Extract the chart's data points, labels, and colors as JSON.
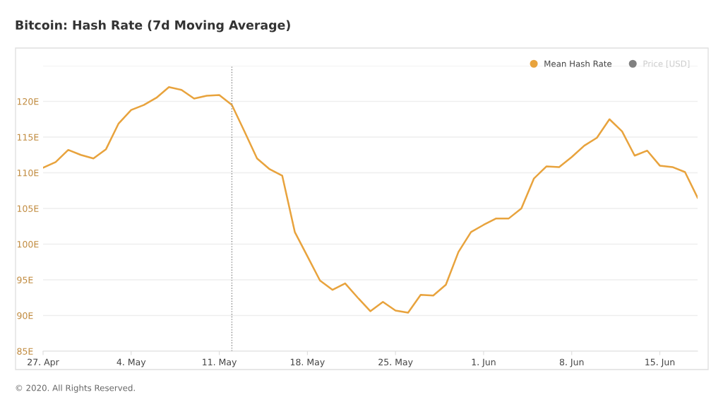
{
  "chart_data": {
    "type": "line",
    "title": "Bitcoin: Hash Rate (7d Moving Average)",
    "x": [
      "2020-04-27",
      "2020-04-28",
      "2020-04-29",
      "2020-04-30",
      "2020-05-01",
      "2020-05-02",
      "2020-05-03",
      "2020-05-04",
      "2020-05-05",
      "2020-05-06",
      "2020-05-07",
      "2020-05-08",
      "2020-05-09",
      "2020-05-10",
      "2020-05-11",
      "2020-05-12",
      "2020-05-13",
      "2020-05-14",
      "2020-05-15",
      "2020-05-16",
      "2020-05-17",
      "2020-05-18",
      "2020-05-19",
      "2020-05-20",
      "2020-05-21",
      "2020-05-22",
      "2020-05-23",
      "2020-05-24",
      "2020-05-25",
      "2020-05-26",
      "2020-05-27",
      "2020-05-28",
      "2020-05-29",
      "2020-05-30",
      "2020-05-31",
      "2020-06-01",
      "2020-06-02",
      "2020-06-03",
      "2020-06-04",
      "2020-06-05",
      "2020-06-06",
      "2020-06-07",
      "2020-06-08",
      "2020-06-09",
      "2020-06-10",
      "2020-06-11",
      "2020-06-12",
      "2020-06-13",
      "2020-06-14",
      "2020-06-15",
      "2020-06-16",
      "2020-06-17",
      "2020-06-18"
    ],
    "series": [
      {
        "name": "Mean Hash Rate",
        "color": "#e8a33d",
        "values": [
          110.7,
          111.5,
          113.2,
          112.5,
          112.0,
          113.3,
          116.9,
          118.8,
          119.5,
          120.5,
          122.0,
          121.6,
          120.4,
          120.8,
          120.9,
          119.5,
          115.8,
          112.0,
          110.5,
          109.6,
          101.7,
          98.3,
          94.9,
          93.6,
          94.5,
          92.5,
          90.6,
          91.9,
          90.7,
          90.4,
          92.9,
          92.8,
          94.3,
          98.9,
          101.7,
          102.7,
          103.6,
          103.6,
          105.0,
          109.2,
          110.9,
          110.8,
          112.2,
          113.8,
          114.9,
          117.5,
          115.8,
          112.4,
          113.1,
          111.0,
          110.8,
          110.1,
          106.5
        ]
      },
      {
        "name": "Price [USD]",
        "color": "#808080",
        "values": [
          null,
          null,
          null,
          null,
          null,
          null,
          null,
          null,
          null,
          null,
          null,
          null,
          null,
          null,
          null,
          null,
          null,
          null,
          null,
          null,
          null,
          null,
          null,
          null,
          null,
          null,
          null,
          null,
          null,
          null,
          null,
          null,
          null,
          null,
          null,
          null,
          null,
          null,
          null,
          null,
          null,
          null,
          null,
          null,
          null,
          null,
          null,
          null,
          null,
          null,
          null,
          null,
          null
        ]
      }
    ],
    "xlim": [
      "2020-04-27",
      "2020-06-18"
    ],
    "xticks": [
      {
        "value": "2020-04-27",
        "label": "27. Apr"
      },
      {
        "value": "2020-05-04",
        "label": "4. May"
      },
      {
        "value": "2020-05-11",
        "label": "11. May"
      },
      {
        "value": "2020-05-18",
        "label": "18. May"
      },
      {
        "value": "2020-05-25",
        "label": "25. May"
      },
      {
        "value": "2020-06-01",
        "label": "1. Jun"
      },
      {
        "value": "2020-06-08",
        "label": "8. Jun"
      },
      {
        "value": "2020-06-15",
        "label": "15. Jun"
      }
    ],
    "ylim": [
      85,
      125
    ],
    "yticks": [
      {
        "value": 85,
        "label": "85E"
      },
      {
        "value": 90,
        "label": "90E"
      },
      {
        "value": 95,
        "label": "95E"
      },
      {
        "value": 100,
        "label": "100E"
      },
      {
        "value": 105,
        "label": "105E"
      },
      {
        "value": 110,
        "label": "110E"
      },
      {
        "value": 115,
        "label": "115E"
      },
      {
        "value": 120,
        "label": "120E"
      },
      {
        "value": 125,
        "label": null
      }
    ],
    "ref_lines": [
      {
        "axis": "x",
        "value": "2020-05-12",
        "label": null,
        "color": "#888888",
        "line_style": "dotted"
      }
    ],
    "grid": "y",
    "legend": "top right",
    "marker": "none",
    "line_style": "solid",
    "annotations": [
      "© 2020. All Rights Reserved."
    ]
  }
}
